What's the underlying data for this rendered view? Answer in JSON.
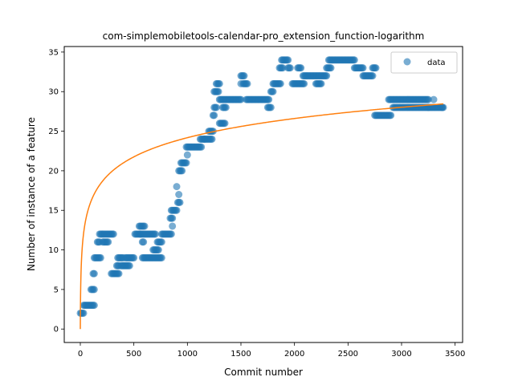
{
  "chart_data": {
    "type": "scatter",
    "title": "com-simplemobiletools-calendar-pro_extension_function-logarithm",
    "xlabel": "Commit number",
    "ylabel": "Number of instance of a feature",
    "xlim": [
      -150,
      3570
    ],
    "ylim": [
      -1.7,
      35.7
    ],
    "xticks": [
      0,
      500,
      1000,
      1500,
      2000,
      2500,
      3000,
      3500
    ],
    "yticks": [
      0,
      5,
      10,
      15,
      20,
      25,
      30,
      35
    ],
    "grid": false,
    "legend": {
      "position": "top-right",
      "entries": [
        "data"
      ]
    },
    "colors": {
      "data": "#1f77b4",
      "fit": "#ff7f0e"
    },
    "series": [
      {
        "name": "data",
        "kind": "scatter",
        "segments": [
          [
            0,
            30,
            2
          ],
          [
            30,
            130,
            3
          ],
          [
            100,
            130,
            5
          ],
          [
            120,
            130,
            7
          ],
          [
            130,
            190,
            9
          ],
          [
            160,
            180,
            11
          ],
          [
            180,
            230,
            12
          ],
          [
            210,
            260,
            11
          ],
          [
            240,
            310,
            12
          ],
          [
            290,
            360,
            7
          ],
          [
            340,
            360,
            8
          ],
          [
            350,
            400,
            9
          ],
          [
            380,
            460,
            8
          ],
          [
            420,
            500,
            9
          ],
          [
            510,
            560,
            12
          ],
          [
            550,
            600,
            13
          ],
          [
            580,
            590,
            11
          ],
          [
            580,
            760,
            9
          ],
          [
            560,
            700,
            12
          ],
          [
            680,
            730,
            10
          ],
          [
            720,
            760,
            11
          ],
          [
            760,
            850,
            12
          ],
          [
            840,
            860,
            14
          ],
          [
            850,
            900,
            15
          ],
          [
            910,
            930,
            16
          ],
          [
            920,
            950,
            20
          ],
          [
            940,
            990,
            21
          ],
          [
            990,
            1130,
            23
          ],
          [
            1120,
            1160,
            24
          ],
          [
            1160,
            1230,
            24
          ],
          [
            1200,
            1240,
            25
          ],
          [
            1240,
            1250,
            27
          ],
          [
            1250,
            1270,
            28
          ],
          [
            1250,
            1290,
            30
          ],
          [
            1270,
            1300,
            31
          ],
          [
            1300,
            1350,
            26
          ],
          [
            1330,
            1360,
            28
          ],
          [
            1300,
            1500,
            29
          ],
          [
            1500,
            1530,
            32
          ],
          [
            1520,
            1560,
            31
          ],
          [
            1550,
            1760,
            29
          ],
          [
            1750,
            1780,
            28
          ],
          [
            1780,
            1800,
            30
          ],
          [
            1800,
            1870,
            31
          ],
          [
            1860,
            1890,
            33
          ],
          [
            1880,
            1940,
            34
          ],
          [
            1940,
            1960,
            33
          ],
          [
            1980,
            2090,
            31
          ],
          [
            2030,
            2060,
            33
          ],
          [
            2080,
            2300,
            32
          ],
          [
            2200,
            2250,
            31
          ],
          [
            2300,
            2340,
            33
          ],
          [
            2320,
            2560,
            34
          ],
          [
            2560,
            2640,
            33
          ],
          [
            2640,
            2730,
            32
          ],
          [
            2730,
            2760,
            33
          ],
          [
            2750,
            2900,
            27
          ],
          [
            2880,
            3250,
            29
          ],
          [
            2920,
            3250,
            28
          ],
          [
            3250,
            3390,
            28
          ]
        ],
        "extra_points": [
          [
            860,
            13
          ],
          [
            920,
            17
          ],
          [
            900,
            18
          ],
          [
            1500,
            31
          ],
          [
            1000,
            22
          ],
          [
            3300,
            29
          ],
          [
            3380,
            28
          ]
        ]
      },
      {
        "name": "",
        "kind": "line",
        "formula": "y = 3.5*ln(x+1)",
        "x_range": [
          0,
          3390
        ]
      }
    ]
  }
}
